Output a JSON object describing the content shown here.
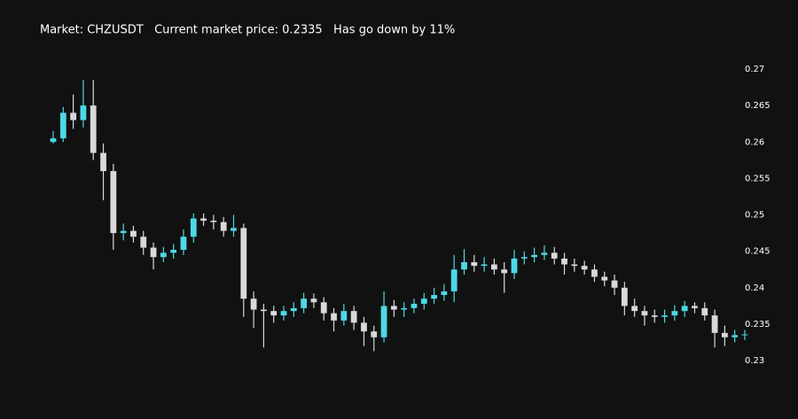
{
  "chart_data": {
    "type": "candlestick",
    "title": "Market: CHZUSDT   Current market price: 0.2335   Has go down by 11%",
    "up_color": "#4dd9e6",
    "down_color": "#d9d9d9",
    "ylim": [
      0.226,
      0.2734
    ],
    "yticks": [
      0.23,
      0.235,
      0.24,
      0.245,
      0.25,
      0.255,
      0.26,
      0.265,
      0.27
    ],
    "open": [
      0.26,
      0.2605,
      0.264,
      0.263,
      0.265,
      0.2585,
      0.256,
      0.2475,
      0.2478,
      0.247,
      0.2455,
      0.2442,
      0.2448,
      0.2452,
      0.247,
      0.2495,
      0.2492,
      0.249,
      0.2478,
      0.2482,
      0.2385,
      0.237,
      0.2368,
      0.2362,
      0.2368,
      0.2372,
      0.2385,
      0.238,
      0.2365,
      0.2355,
      0.2368,
      0.2352,
      0.234,
      0.2332,
      0.2375,
      0.237,
      0.2372,
      0.2378,
      0.2385,
      0.239,
      0.2395,
      0.2425,
      0.2435,
      0.243,
      0.2432,
      0.2425,
      0.242,
      0.244,
      0.2442,
      0.2445,
      0.2448,
      0.244,
      0.2432,
      0.243,
      0.2425,
      0.2415,
      0.241,
      0.24,
      0.2375,
      0.2368,
      0.2362,
      0.236,
      0.2362,
      0.2368,
      0.2375,
      0.2372,
      0.2362,
      0.2338,
      0.2332,
      0.2335
    ],
    "high": [
      0.2615,
      0.2648,
      0.2665,
      0.2685,
      0.2685,
      0.2598,
      0.257,
      0.2488,
      0.2485,
      0.2478,
      0.2462,
      0.2456,
      0.246,
      0.248,
      0.2502,
      0.2502,
      0.25,
      0.2497,
      0.25,
      0.2488,
      0.2395,
      0.2378,
      0.2375,
      0.2375,
      0.238,
      0.2393,
      0.2392,
      0.2387,
      0.2372,
      0.2378,
      0.2375,
      0.236,
      0.2348,
      0.2395,
      0.2383,
      0.238,
      0.2385,
      0.2393,
      0.24,
      0.2405,
      0.2445,
      0.2453,
      0.2445,
      0.2442,
      0.244,
      0.2435,
      0.2452,
      0.245,
      0.2455,
      0.2458,
      0.2456,
      0.2448,
      0.244,
      0.2437,
      0.2432,
      0.2422,
      0.2418,
      0.2408,
      0.2385,
      0.2375,
      0.237,
      0.237,
      0.2376,
      0.2382,
      0.238,
      0.238,
      0.237,
      0.2348,
      0.2342,
      0.2342
    ],
    "low": [
      0.2598,
      0.26,
      0.2618,
      0.262,
      0.2575,
      0.252,
      0.2452,
      0.2465,
      0.2462,
      0.2445,
      0.2425,
      0.2435,
      0.244,
      0.2445,
      0.2462,
      0.2485,
      0.248,
      0.247,
      0.247,
      0.236,
      0.2345,
      0.2318,
      0.2352,
      0.2355,
      0.236,
      0.2365,
      0.2372,
      0.2355,
      0.234,
      0.2348,
      0.2342,
      0.232,
      0.2313,
      0.2325,
      0.236,
      0.236,
      0.2365,
      0.237,
      0.2378,
      0.2382,
      0.238,
      0.2418,
      0.2422,
      0.2422,
      0.2418,
      0.2393,
      0.2412,
      0.2432,
      0.2435,
      0.2438,
      0.2432,
      0.2418,
      0.2422,
      0.2418,
      0.2408,
      0.2402,
      0.239,
      0.2362,
      0.236,
      0.2348,
      0.2352,
      0.2352,
      0.2355,
      0.236,
      0.2365,
      0.2355,
      0.2318,
      0.232,
      0.2325,
      0.2328
    ],
    "close": [
      0.2605,
      0.264,
      0.263,
      0.265,
      0.2585,
      0.256,
      0.2475,
      0.2478,
      0.247,
      0.2455,
      0.2442,
      0.2448,
      0.2452,
      0.247,
      0.2495,
      0.2492,
      0.249,
      0.2478,
      0.2482,
      0.2385,
      0.237,
      0.2368,
      0.2362,
      0.2368,
      0.2372,
      0.2385,
      0.238,
      0.2365,
      0.2355,
      0.2368,
      0.2352,
      0.234,
      0.2332,
      0.2375,
      0.237,
      0.2372,
      0.2378,
      0.2385,
      0.239,
      0.2395,
      0.2425,
      0.2435,
      0.243,
      0.2432,
      0.2425,
      0.242,
      0.244,
      0.2442,
      0.2445,
      0.2448,
      0.244,
      0.2432,
      0.243,
      0.2425,
      0.2415,
      0.241,
      0.24,
      0.2375,
      0.2368,
      0.2362,
      0.236,
      0.2362,
      0.2368,
      0.2375,
      0.2372,
      0.2362,
      0.2338,
      0.2332,
      0.2335,
      0.2336
    ]
  }
}
